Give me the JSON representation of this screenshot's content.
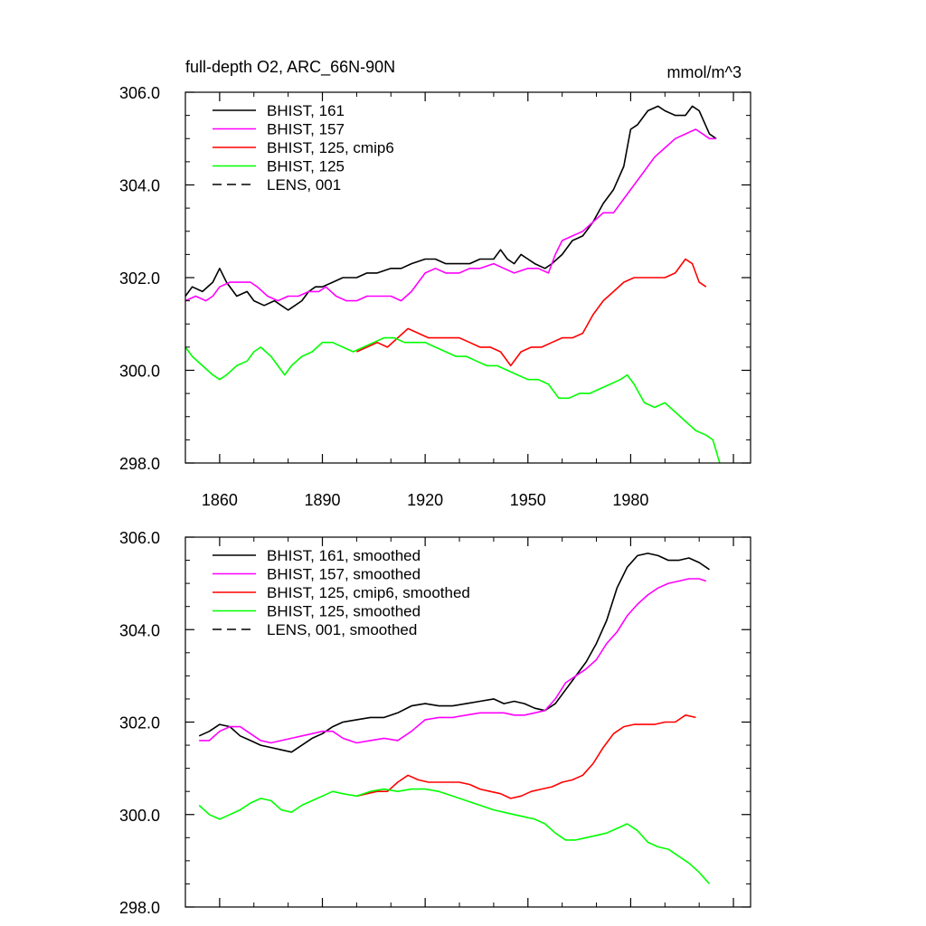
{
  "chart_data": [
    {
      "type": "line",
      "title": "full-depth O2, ARC_66N-90N",
      "units": "mmol/m^3",
      "xlim": [
        1850,
        2015
      ],
      "ylim": [
        298.0,
        306.0
      ],
      "x_ticks": [
        1860,
        1890,
        1920,
        1950,
        1980
      ],
      "y_ticks": [
        "306.0",
        "304.0",
        "302.0",
        "300.0",
        "298.0"
      ],
      "legend": [
        {
          "label": "BHIST, 161",
          "color": "#000000",
          "dash": "solid"
        },
        {
          "label": "BHIST, 157",
          "color": "#ff00ff",
          "dash": "solid"
        },
        {
          "label": "BHIST, 125, cmip6",
          "color": "#ff0000",
          "dash": "solid"
        },
        {
          "label": "BHIST, 125",
          "color": "#00ff00",
          "dash": "solid"
        },
        {
          "label": "LENS, 001",
          "color": "#000000",
          "dash": "dashed"
        }
      ],
      "series": [
        {
          "name": "BHIST, 161",
          "color": "#000000",
          "x": [
            1850,
            1852,
            1855,
            1858,
            1860,
            1862,
            1865,
            1868,
            1870,
            1873,
            1876,
            1878,
            1880,
            1882,
            1884,
            1886,
            1888,
            1890,
            1893,
            1896,
            1900,
            1903,
            1906,
            1910,
            1913,
            1916,
            1920,
            1923,
            1926,
            1930,
            1933,
            1936,
            1940,
            1942,
            1944,
            1946,
            1948,
            1950,
            1952,
            1955,
            1957,
            1960,
            1963,
            1966,
            1969,
            1972,
            1975,
            1978,
            1980,
            1982,
            1985,
            1988,
            1990,
            1993,
            1996,
            1998,
            2000,
            2003,
            2005
          ],
          "y": [
            301.6,
            301.8,
            301.7,
            301.9,
            302.2,
            301.9,
            301.6,
            301.7,
            301.5,
            301.4,
            301.5,
            301.4,
            301.3,
            301.4,
            301.5,
            301.7,
            301.8,
            301.8,
            301.9,
            302.0,
            302.0,
            302.1,
            302.1,
            302.2,
            302.2,
            302.3,
            302.4,
            302.4,
            302.3,
            302.3,
            302.3,
            302.4,
            302.4,
            302.6,
            302.4,
            302.3,
            302.5,
            302.4,
            302.3,
            302.2,
            302.3,
            302.5,
            302.8,
            302.9,
            303.2,
            303.6,
            303.9,
            304.4,
            305.2,
            305.3,
            305.6,
            305.7,
            305.6,
            305.5,
            305.5,
            305.7,
            305.6,
            305.1,
            305.0
          ]
        },
        {
          "name": "BHIST, 157",
          "color": "#ff00ff",
          "x": [
            1850,
            1853,
            1856,
            1858,
            1860,
            1863,
            1866,
            1869,
            1871,
            1874,
            1877,
            1880,
            1883,
            1886,
            1889,
            1891,
            1894,
            1897,
            1900,
            1903,
            1906,
            1910,
            1913,
            1916,
            1920,
            1923,
            1926,
            1930,
            1933,
            1936,
            1940,
            1943,
            1946,
            1950,
            1953,
            1956,
            1958,
            1960,
            1963,
            1966,
            1969,
            1972,
            1975,
            1978,
            1981,
            1984,
            1987,
            1990,
            1993,
            1996,
            1999,
            2001,
            2003,
            2005
          ],
          "y": [
            301.5,
            301.6,
            301.5,
            301.6,
            301.8,
            301.9,
            301.9,
            301.9,
            301.8,
            301.6,
            301.5,
            301.6,
            301.6,
            301.7,
            301.7,
            301.8,
            301.6,
            301.5,
            301.5,
            301.6,
            301.6,
            301.6,
            301.5,
            301.7,
            302.1,
            302.2,
            302.1,
            302.1,
            302.2,
            302.2,
            302.3,
            302.2,
            302.1,
            302.2,
            302.2,
            302.1,
            302.5,
            302.8,
            302.9,
            303.0,
            303.2,
            303.4,
            303.4,
            303.7,
            304.0,
            304.3,
            304.6,
            304.8,
            305.0,
            305.1,
            305.2,
            305.1,
            305.0,
            305.0
          ]
        },
        {
          "name": "BHIST, 125, cmip6",
          "color": "#ff0000",
          "x": [
            1900,
            1903,
            1906,
            1909,
            1912,
            1915,
            1918,
            1921,
            1924,
            1927,
            1930,
            1933,
            1936,
            1939,
            1942,
            1945,
            1948,
            1951,
            1954,
            1957,
            1960,
            1963,
            1966,
            1969,
            1972,
            1975,
            1978,
            1981,
            1984,
            1987,
            1990,
            1993,
            1996,
            1998,
            2000,
            2002
          ],
          "y": [
            300.4,
            300.5,
            300.6,
            300.5,
            300.7,
            300.9,
            300.8,
            300.7,
            300.7,
            300.7,
            300.7,
            300.6,
            300.5,
            300.5,
            300.4,
            300.1,
            300.4,
            300.5,
            300.5,
            300.6,
            300.7,
            300.7,
            300.8,
            301.2,
            301.5,
            301.7,
            301.9,
            302.0,
            302.0,
            302.0,
            302.0,
            302.1,
            302.4,
            302.3,
            301.9,
            301.8
          ]
        },
        {
          "name": "BHIST, 125",
          "color": "#00ff00",
          "x": [
            1850,
            1852,
            1855,
            1858,
            1860,
            1862,
            1865,
            1868,
            1870,
            1872,
            1875,
            1877,
            1879,
            1881,
            1884,
            1887,
            1890,
            1893,
            1896,
            1899,
            1902,
            1905,
            1908,
            1911,
            1914,
            1917,
            1920,
            1923,
            1926,
            1929,
            1932,
            1935,
            1938,
            1941,
            1944,
            1947,
            1950,
            1953,
            1956,
            1959,
            1962,
            1965,
            1968,
            1971,
            1974,
            1977,
            1979,
            1981,
            1984,
            1987,
            1990,
            1993,
            1996,
            1999,
            2002,
            2004,
            2006
          ],
          "y": [
            300.5,
            300.3,
            300.1,
            299.9,
            299.8,
            299.9,
            300.1,
            300.2,
            300.4,
            300.5,
            300.3,
            300.1,
            299.9,
            300.1,
            300.3,
            300.4,
            300.6,
            300.6,
            300.5,
            300.4,
            300.5,
            300.6,
            300.7,
            300.7,
            300.6,
            300.6,
            300.6,
            300.5,
            300.4,
            300.3,
            300.3,
            300.2,
            300.1,
            300.1,
            300.0,
            299.9,
            299.8,
            299.8,
            299.7,
            299.4,
            299.4,
            299.5,
            299.5,
            299.6,
            299.7,
            299.8,
            299.9,
            299.7,
            299.3,
            299.2,
            299.3,
            299.1,
            298.9,
            298.7,
            298.6,
            298.5,
            298.0
          ]
        }
      ]
    },
    {
      "type": "line",
      "xlim": [
        1850,
        2015
      ],
      "ylim": [
        298.0,
        306.0
      ],
      "y_ticks": [
        "306.0",
        "304.0",
        "302.0",
        "300.0",
        "298.0"
      ],
      "legend": [
        {
          "label": "BHIST, 161, smoothed",
          "color": "#000000",
          "dash": "solid"
        },
        {
          "label": "BHIST, 157, smoothed",
          "color": "#ff00ff",
          "dash": "solid"
        },
        {
          "label": "BHIST, 125, cmip6, smoothed",
          "color": "#ff0000",
          "dash": "solid"
        },
        {
          "label": "BHIST, 125, smoothed",
          "color": "#00ff00",
          "dash": "solid"
        },
        {
          "label": "LENS, 001, smoothed",
          "color": "#000000",
          "dash": "dashed"
        }
      ],
      "series": [
        {
          "name": "BHIST, 161, smoothed",
          "color": "#000000",
          "x": [
            1854,
            1857,
            1860,
            1863,
            1866,
            1869,
            1872,
            1875,
            1878,
            1881,
            1884,
            1887,
            1890,
            1893,
            1896,
            1900,
            1904,
            1908,
            1912,
            1916,
            1920,
            1924,
            1928,
            1932,
            1936,
            1940,
            1943,
            1946,
            1949,
            1952,
            1955,
            1958,
            1961,
            1964,
            1967,
            1970,
            1973,
            1976,
            1979,
            1982,
            1985,
            1988,
            1991,
            1994,
            1997,
            2000,
            2003
          ],
          "y": [
            301.7,
            301.8,
            301.95,
            301.9,
            301.7,
            301.6,
            301.5,
            301.45,
            301.4,
            301.35,
            301.5,
            301.65,
            301.75,
            301.9,
            302.0,
            302.05,
            302.1,
            302.1,
            302.2,
            302.35,
            302.4,
            302.35,
            302.35,
            302.4,
            302.45,
            302.5,
            302.4,
            302.45,
            302.4,
            302.3,
            302.25,
            302.4,
            302.7,
            303.0,
            303.3,
            303.7,
            304.2,
            304.9,
            305.35,
            305.6,
            305.65,
            305.6,
            305.5,
            305.5,
            305.55,
            305.45,
            305.3
          ]
        },
        {
          "name": "BHIST, 157, smoothed",
          "color": "#ff00ff",
          "x": [
            1854,
            1857,
            1860,
            1863,
            1866,
            1869,
            1872,
            1875,
            1878,
            1881,
            1884,
            1887,
            1890,
            1893,
            1896,
            1900,
            1904,
            1908,
            1912,
            1916,
            1920,
            1924,
            1928,
            1932,
            1936,
            1940,
            1943,
            1946,
            1949,
            1952,
            1955,
            1958,
            1961,
            1964,
            1967,
            1970,
            1973,
            1976,
            1979,
            1982,
            1985,
            1988,
            1991,
            1994,
            1997,
            2000,
            2002
          ],
          "y": [
            301.6,
            301.6,
            301.8,
            301.9,
            301.9,
            301.75,
            301.6,
            301.55,
            301.6,
            301.65,
            301.7,
            301.75,
            301.8,
            301.8,
            301.65,
            301.55,
            301.6,
            301.65,
            301.6,
            301.8,
            302.05,
            302.1,
            302.1,
            302.15,
            302.2,
            302.2,
            302.2,
            302.15,
            302.15,
            302.2,
            302.25,
            302.5,
            302.85,
            303.0,
            303.15,
            303.35,
            303.7,
            303.95,
            304.3,
            304.55,
            304.75,
            304.9,
            305.0,
            305.05,
            305.1,
            305.1,
            305.05
          ]
        },
        {
          "name": "BHIST, 125, cmip6, smoothed",
          "color": "#ff0000",
          "x": [
            1900,
            1903,
            1906,
            1909,
            1912,
            1915,
            1918,
            1921,
            1924,
            1927,
            1930,
            1933,
            1936,
            1939,
            1942,
            1945,
            1948,
            1951,
            1954,
            1957,
            1960,
            1963,
            1966,
            1969,
            1972,
            1975,
            1978,
            1981,
            1984,
            1987,
            1990,
            1993,
            1996,
            1999
          ],
          "y": [
            300.4,
            300.45,
            300.5,
            300.5,
            300.7,
            300.85,
            300.75,
            300.7,
            300.7,
            300.7,
            300.7,
            300.65,
            300.55,
            300.5,
            300.45,
            300.35,
            300.4,
            300.5,
            300.55,
            300.6,
            300.7,
            300.75,
            300.85,
            301.1,
            301.45,
            301.75,
            301.9,
            301.95,
            301.95,
            301.95,
            302.0,
            302.0,
            302.15,
            302.1
          ]
        },
        {
          "name": "BHIST, 125, smoothed",
          "color": "#00ff00",
          "x": [
            1854,
            1857,
            1860,
            1863,
            1866,
            1869,
            1872,
            1875,
            1878,
            1881,
            1884,
            1887,
            1890,
            1893,
            1896,
            1900,
            1904,
            1908,
            1912,
            1916,
            1920,
            1924,
            1928,
            1932,
            1936,
            1940,
            1943,
            1946,
            1949,
            1952,
            1955,
            1958,
            1961,
            1964,
            1967,
            1970,
            1973,
            1976,
            1979,
            1982,
            1985,
            1988,
            1991,
            1994,
            1997,
            2000,
            2003
          ],
          "y": [
            300.2,
            300.0,
            299.9,
            300.0,
            300.1,
            300.25,
            300.35,
            300.3,
            300.1,
            300.05,
            300.2,
            300.3,
            300.4,
            300.5,
            300.45,
            300.4,
            300.5,
            300.55,
            300.5,
            300.55,
            300.55,
            300.5,
            300.4,
            300.3,
            300.2,
            300.1,
            300.05,
            300.0,
            299.95,
            299.9,
            299.8,
            299.6,
            299.45,
            299.45,
            299.5,
            299.55,
            299.6,
            299.7,
            299.8,
            299.65,
            299.4,
            299.3,
            299.25,
            299.1,
            298.95,
            298.75,
            298.5
          ]
        }
      ]
    }
  ]
}
